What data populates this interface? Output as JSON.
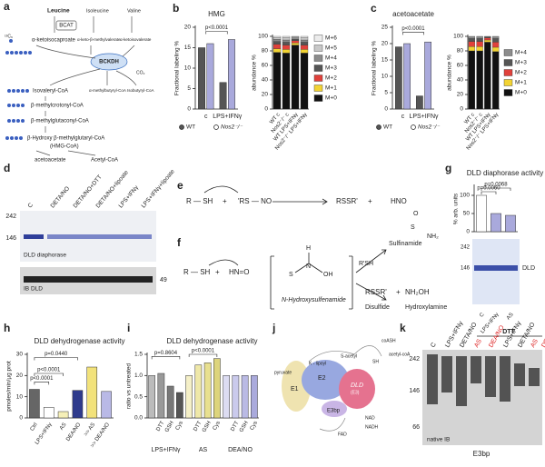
{
  "letters": [
    "a",
    "b",
    "c",
    "d",
    "e",
    "f",
    "g",
    "h",
    "i",
    "j",
    "k"
  ],
  "a": [
    "Leucine",
    "Isoleucine",
    "Valine",
    "BCAT",
    "α-ketoisocaproate",
    "α-keto-β-methylvalerate",
    "α-ketoisovalerate",
    "BCKDH",
    "Isovaleryl-CoA",
    "α-methylbutyryl-CoA",
    "Isobutyryl-CoA",
    "β-methylcrotonyl-CoA",
    "β-methylglutaconyl-CoA",
    "β-Hydroxy β-methylglutaryl-CoA",
    "(HMG-CoA)",
    "acetoacetate",
    "Acetyl-CoA",
    "¹³C₆",
    "CO₂"
  ],
  "d": [
    "C",
    "DETA/NO",
    "DETA/NO+DTT",
    "DETA/NO+lipoate",
    "LPS+IFNγ",
    "LPS+IFNγ+lipoate",
    "242",
    "146",
    "DLD diaphorase",
    "IB DLD",
    "49"
  ],
  "e": [
    "R — SH",
    "+",
    "'RS — NO",
    "RSSR'",
    "+",
    "HNO"
  ],
  "f": [
    "R — SH",
    "+",
    "HN=O",
    "S",
    "N",
    "H",
    "OH",
    "N-Hydroxysulfenamide",
    "Sulfinamide",
    "O",
    "S",
    "NH₂",
    "R'SH",
    "RSSR'",
    "+",
    "NH₂OH",
    "Disulfide",
    "Hydroxylamine"
  ],
  "g": [
    "242",
    "146",
    "DLD"
  ],
  "j": [
    "pyruvate",
    "E1",
    "E2",
    "DLD",
    "(E3)",
    "E3bp",
    "K - lipoyl",
    "S-acetyl",
    "SH",
    "coASH",
    "acetyl-coA",
    "NAD",
    "NADH",
    "FAD"
  ],
  "k": [
    "C",
    "LPS+IFNγ",
    "DETA/NO",
    "AS",
    "DEA/NO",
    "LPS+IFNγ",
    "DETA/NO",
    "AS",
    "DEA/NO",
    "DTT",
    "242",
    "146",
    "66",
    "native IB",
    "E3bp"
  ],
  "chart_data": [
    {
      "type": "bar",
      "title": "HMG",
      "y_label": "Fractional labeling %",
      "categories": [
        "c",
        "LPS+IFNγ"
      ],
      "series": [
        {
          "name": "WT",
          "color": "#555555",
          "values": [
            15,
            6.5
          ]
        },
        {
          "name": "Nos2⁻/⁻",
          "color": "#a9a9dc",
          "values": [
            16,
            17
          ]
        }
      ],
      "ylim": [
        0,
        20
      ],
      "yticks": [
        0,
        5,
        10,
        15,
        20
      ],
      "annotations": [
        "p<0.0001"
      ]
    },
    {
      "type": "stacked_bar",
      "y_label": "abundance %",
      "categories": [
        "WT c",
        "Nos2⁻/⁻ c",
        "WT LPS+IFNγ",
        "Nos2⁻/⁻ LPS+IFNγ"
      ],
      "series": [
        {
          "name": "M+0",
          "color": "#111111",
          "values": [
            78,
            77,
            88,
            77
          ]
        },
        {
          "name": "M+1",
          "color": "#f2d333",
          "values": [
            5,
            5,
            3,
            5
          ]
        },
        {
          "name": "M+2",
          "color": "#e0413b",
          "values": [
            6,
            6,
            3,
            6
          ]
        },
        {
          "name": "M+3",
          "color": "#555555",
          "values": [
            4,
            4,
            2,
            4
          ]
        },
        {
          "name": "M+4",
          "color": "#8c8c8c",
          "values": [
            3,
            3,
            2,
            3
          ]
        },
        {
          "name": "M+5",
          "color": "#c8c8c8",
          "values": [
            2,
            3,
            1,
            3
          ]
        },
        {
          "name": "M+6",
          "color": "#ececec",
          "values": [
            2,
            2,
            1,
            2
          ]
        }
      ],
      "ylim": [
        0,
        100
      ],
      "yticks": [
        0,
        20,
        40,
        60,
        80,
        100
      ]
    },
    {
      "type": "bar",
      "title": "acetoacetate",
      "y_label": "Fractional labeling %",
      "categories": [
        "c",
        "LPS+IFNγ"
      ],
      "series": [
        {
          "name": "WT",
          "color": "#555555",
          "values": [
            19,
            4
          ]
        },
        {
          "name": "Nos2⁻/⁻",
          "color": "#a9a9dc",
          "values": [
            20,
            20.5
          ]
        }
      ],
      "ylim": [
        0,
        25
      ],
      "yticks": [
        0,
        5,
        10,
        15,
        20,
        25
      ],
      "annotations": [
        "p<0.0001"
      ]
    },
    {
      "type": "stacked_bar",
      "y_label": "abundance %",
      "categories": [
        "WT c",
        "Nos2⁻/⁻ c",
        "WT LPS+IFNγ",
        "Nos2⁻/⁻ LPS+IFNγ"
      ],
      "series": [
        {
          "name": "M+0",
          "color": "#111111",
          "values": [
            80,
            80,
            92,
            79
          ]
        },
        {
          "name": "M+1",
          "color": "#f2d333",
          "values": [
            6,
            6,
            3,
            6
          ]
        },
        {
          "name": "M+2",
          "color": "#e0413b",
          "values": [
            7,
            7,
            3,
            7
          ]
        },
        {
          "name": "M+3",
          "color": "#555555",
          "values": [
            4,
            4,
            1,
            5
          ]
        },
        {
          "name": "M+4",
          "color": "#8c8c8c",
          "values": [
            3,
            3,
            1,
            3
          ]
        }
      ],
      "ylim": [
        0,
        100
      ],
      "yticks": [
        0,
        20,
        40,
        60,
        80,
        100
      ]
    },
    {
      "type": "bar",
      "title": "DLD diaphorase activity",
      "y_label": "% arb. units",
      "categories": [
        "C",
        "LPS+IFNγ",
        "AS"
      ],
      "values": [
        100,
        50,
        45
      ],
      "colors": [
        "#ffffff",
        "#a9a9dc",
        "#a9a9dc"
      ],
      "ylim": [
        0,
        125
      ],
      "yticks": [
        0,
        50,
        100
      ],
      "annotations": [
        "p=0.0068",
        "p=0.0060"
      ]
    },
    {
      "type": "bar",
      "title": "DLD dehydrogenase activity",
      "y_label": "pmoles/min/µg prot",
      "categories": [
        "Ctrl",
        "LPS+IFNγ",
        "AS",
        "DEA/NO",
        ">> AS",
        ">> DEA/NO"
      ],
      "values": [
        13.5,
        5,
        3,
        13,
        24,
        12.5
      ],
      "colors": [
        "#666666",
        "#ffffff",
        "#f5efb8",
        "#2e3a8c",
        "#f2e27a",
        "#b9b9e6"
      ],
      "ylim": [
        0,
        30
      ],
      "yticks": [
        0,
        10,
        20,
        30
      ],
      "annotations": [
        "p<0.0001",
        "p<0.0001",
        "p=0.0440"
      ]
    },
    {
      "type": "bar",
      "title": "DLD dehydrogenase activity",
      "y_label": "ratio vs untreated",
      "categories": [
        null,
        "DTT",
        "GSH",
        "Cys",
        null,
        "DTT",
        "GSH",
        "Cys",
        null,
        "DTT",
        "GSH",
        "Cys"
      ],
      "groups": [
        "LPS+IFNγ",
        "AS",
        "DEA/NO"
      ],
      "values": [
        1.0,
        1.05,
        0.75,
        0.6,
        1.0,
        1.25,
        1.3,
        1.4,
        1.0,
        1.0,
        1.0,
        1.0
      ],
      "colors": [
        "#bbbbbb",
        "#999999",
        "#777777",
        "#555555",
        "#f5f0c8",
        "#efe8a8",
        "#e8e090",
        "#ddd47c",
        "#dcdcf2",
        "#cacaec",
        "#babae4",
        "#aaaadc"
      ],
      "ylim": [
        0,
        1.5
      ],
      "yticks": [
        {
          "value": 0,
          "label": "0.0"
        },
        0.5,
        {
          "value": 1,
          "label": "1.0"
        },
        1.5
      ],
      "annotations": [
        "p=0.8604",
        "p<0.0001"
      ]
    }
  ]
}
